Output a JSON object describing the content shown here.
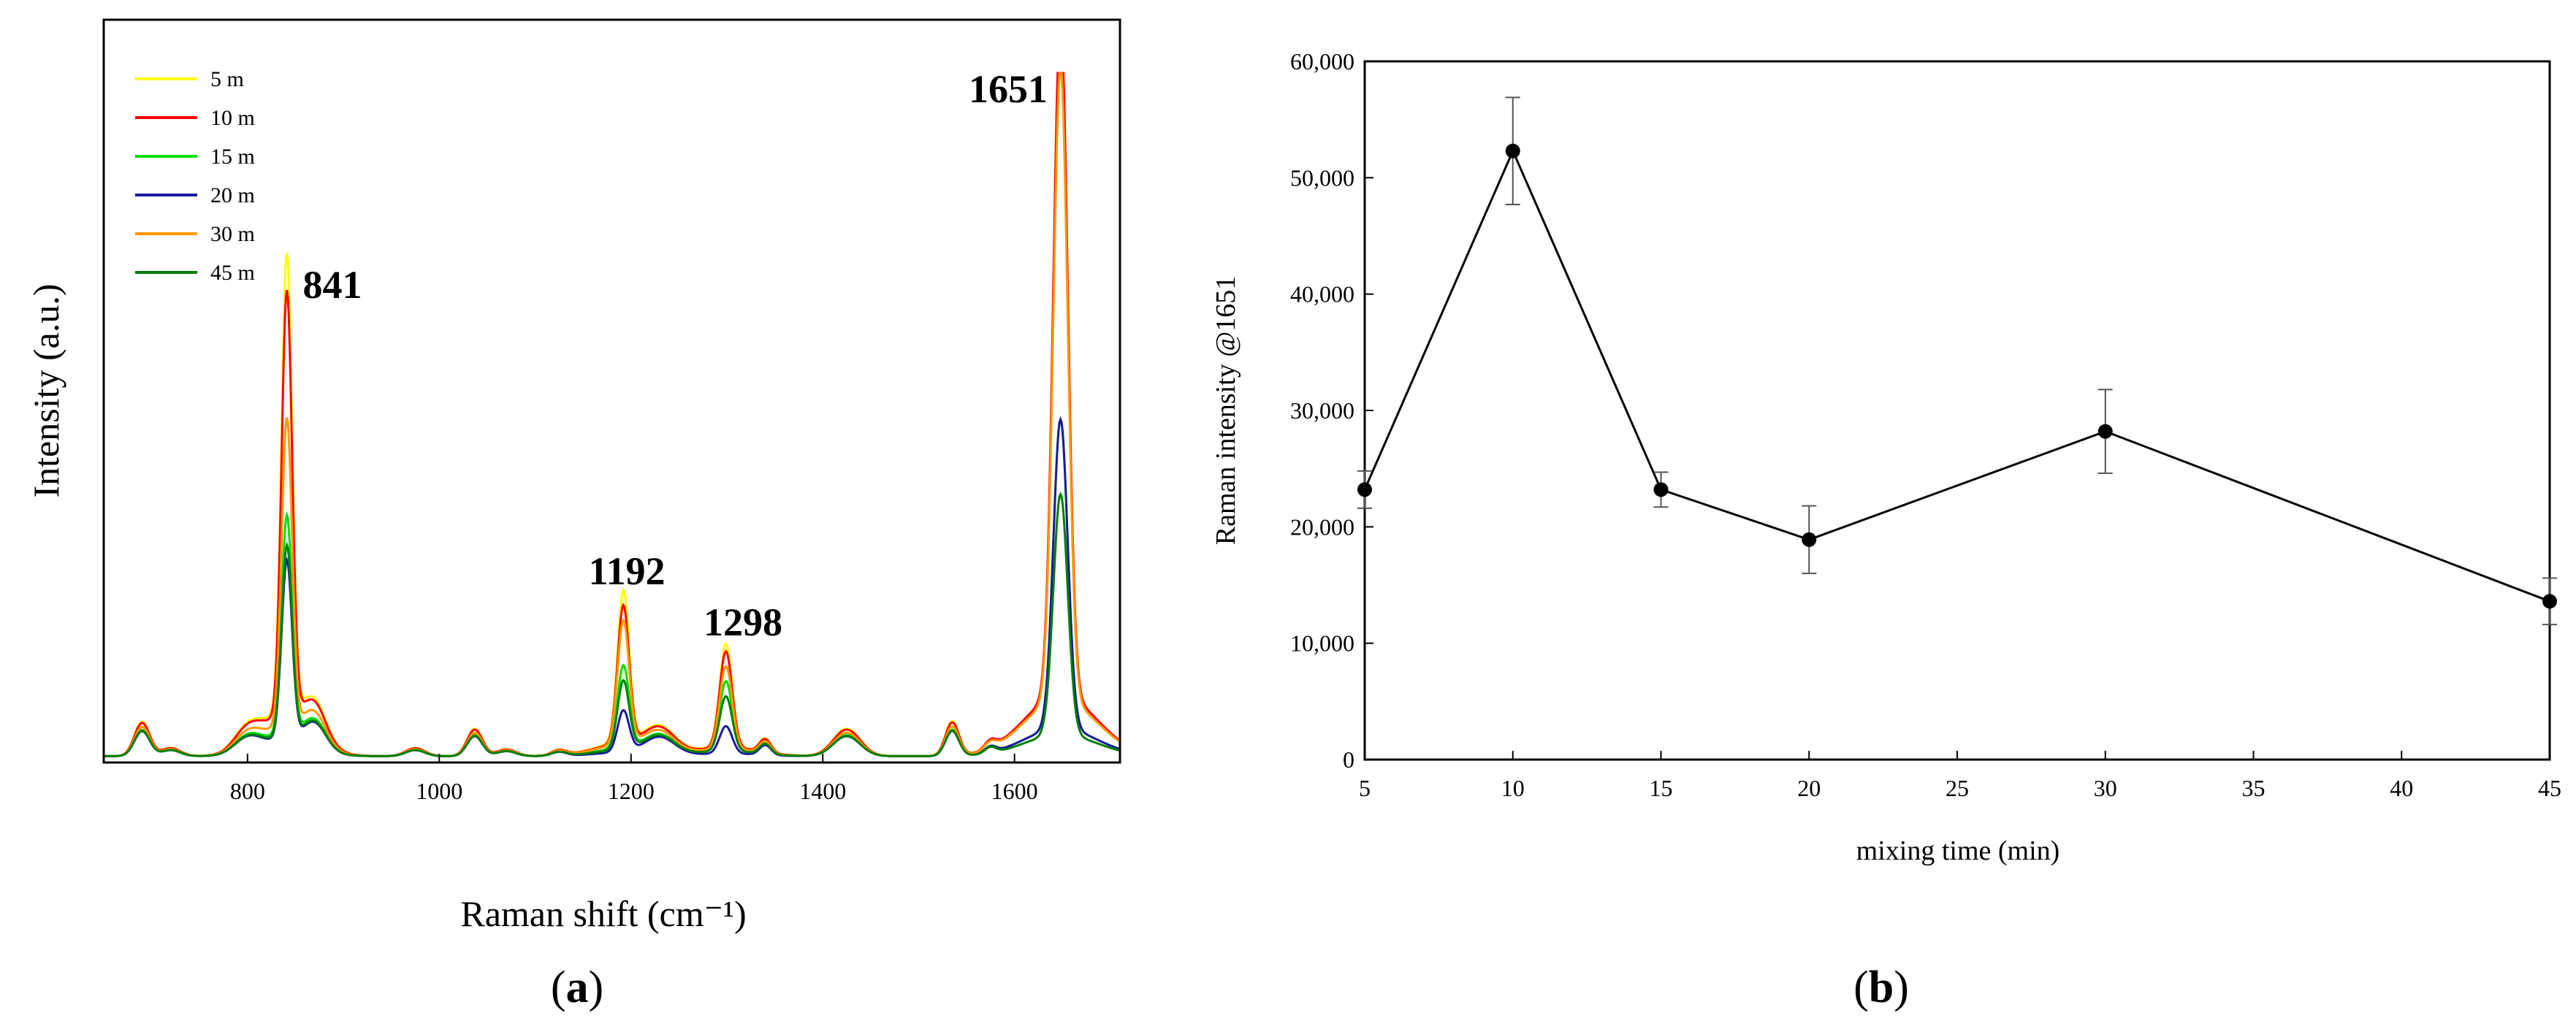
{
  "chart_data": [
    {
      "type": "line",
      "panel": "(a)",
      "xlabel": "Raman shift (cm⁻¹)",
      "ylabel": "Intensity (a.u.)",
      "xlim": [
        650,
        1710
      ],
      "ylim": [
        0,
        1.0
      ],
      "x_ticks": [
        800,
        1000,
        1200,
        1400,
        1600
      ],
      "y_ticks_shown": false,
      "legend_position": "top-left",
      "series": [
        {
          "name": "5 m",
          "color": "#ffff00",
          "peaks": {
            "841": 0.67,
            "1192": 0.22,
            "1298": 0.15,
            "1651": 0.95
          }
        },
        {
          "name": "10 m",
          "color": "#ff0000",
          "peaks": {
            "841": 0.62,
            "1192": 0.2,
            "1298": 0.14,
            "1651": 0.99
          }
        },
        {
          "name": "15 m",
          "color": "#00e000",
          "peaks": {
            "841": 0.32,
            "1192": 0.12,
            "1298": 0.1,
            "1651": 0.45
          }
        },
        {
          "name": "20 m",
          "color": "#1a1aa0",
          "peaks": {
            "841": 0.26,
            "1192": 0.06,
            "1298": 0.04,
            "1651": 0.45
          }
        },
        {
          "name": "30 m",
          "color": "#ff9900",
          "peaks": {
            "841": 0.45,
            "1192": 0.18,
            "1298": 0.12,
            "1651": 0.92
          }
        },
        {
          "name": "45 m",
          "color": "#008000",
          "peaks": {
            "841": 0.28,
            "1192": 0.1,
            "1298": 0.08,
            "1651": 0.35
          }
        }
      ],
      "annotations": [
        "841",
        "1192",
        "1298",
        "1651"
      ]
    },
    {
      "type": "line",
      "panel": "(b)",
      "xlabel": "mixing time (min)",
      "ylabel": "Raman intensity @1651",
      "xlim": [
        5,
        45
      ],
      "ylim": [
        0,
        60000
      ],
      "x_ticks": [
        "5",
        "10",
        "15",
        "20",
        "25",
        "30",
        "35",
        "40",
        "45"
      ],
      "y_ticks": [
        "0",
        "10,000",
        "20,000",
        "30,000",
        "40,000",
        "50,000",
        "60,000"
      ],
      "x": [
        5,
        10,
        15,
        20,
        30,
        45
      ],
      "values": [
        23200,
        52300,
        23200,
        18900,
        28200,
        13600
      ],
      "error": [
        1600,
        4600,
        1500,
        2900,
        3600,
        2000
      ],
      "color": "#000000"
    }
  ]
}
